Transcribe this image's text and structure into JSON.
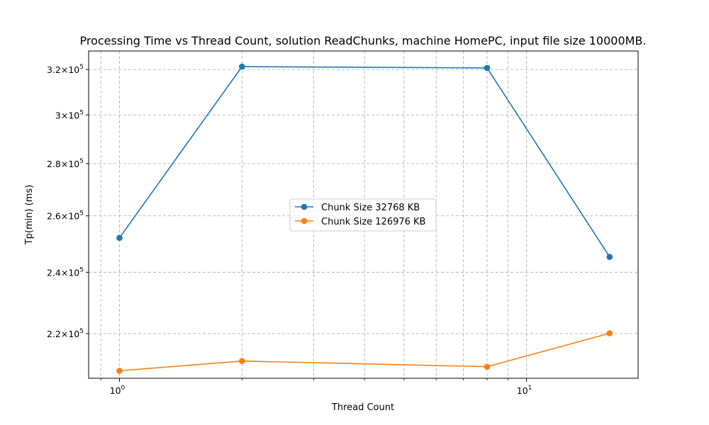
{
  "chart_data": {
    "type": "line",
    "title": "Processing Time vs Thread Count, solution ReadChunks, machine HomePC, input file size 10000MB.",
    "xlabel": "Thread Count",
    "ylabel": "Tp(min) (ms)",
    "x_scale": "log",
    "y_scale": "log",
    "xlim": [
      0.84,
      18.8
    ],
    "ylim": [
      206500,
      328500
    ],
    "grid": true,
    "legend_position": "center",
    "x_major_ticks": [
      {
        "value": 1,
        "base": "10",
        "exp": "0"
      },
      {
        "value": 10,
        "base": "10",
        "exp": "1"
      }
    ],
    "x_minor_ticks": [
      2,
      3,
      4,
      5,
      6,
      7,
      8,
      9
    ],
    "y_ticks": [
      {
        "value": 220000,
        "mant": "2.2",
        "exp": "5"
      },
      {
        "value": 240000,
        "mant": "2.4",
        "exp": "5"
      },
      {
        "value": 260000,
        "mant": "2.6",
        "exp": "5"
      },
      {
        "value": 280000,
        "mant": "2.8",
        "exp": "5"
      },
      {
        "value": 300000,
        "mant": "3",
        "exp": "5"
      },
      {
        "value": 320000,
        "mant": "3.2",
        "exp": "5"
      }
    ],
    "x": [
      1,
      2,
      8,
      16
    ],
    "series": [
      {
        "name": "Chunk Size 32768 KB",
        "color": "#1f77b4",
        "values": [
          252000,
          321300,
          320700,
          245300
        ]
      },
      {
        "name": "Chunk Size 126976 KB",
        "color": "#ff7f0e",
        "values": [
          208700,
          211600,
          209900,
          220100
        ]
      }
    ]
  }
}
